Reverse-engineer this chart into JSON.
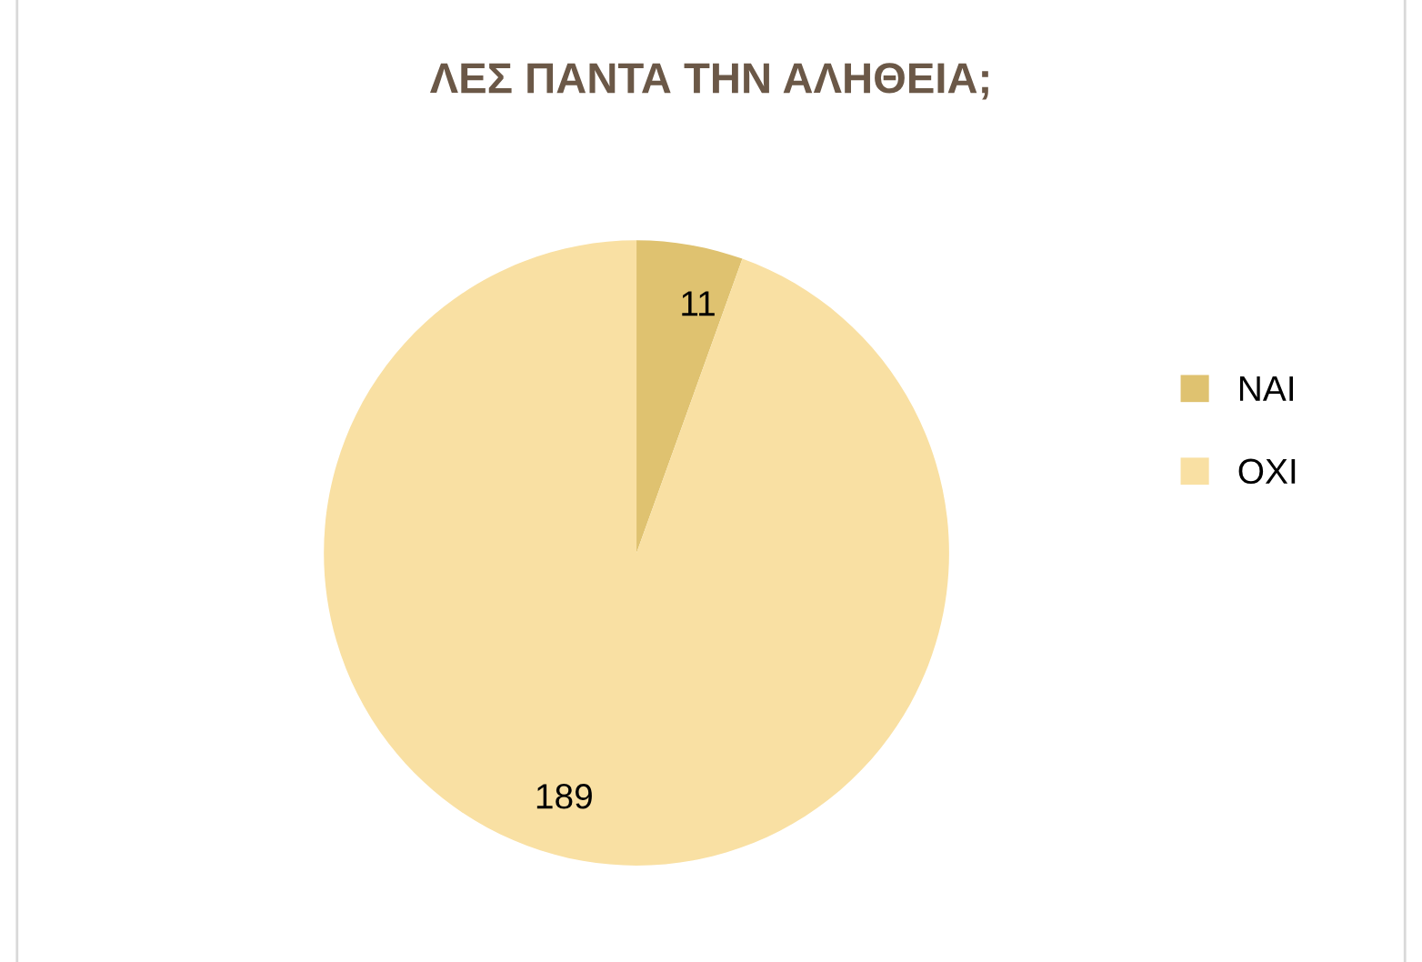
{
  "chart_data": {
    "type": "pie",
    "title": "ΛΕΣ ΠΑΝΤΑ ΤΗΝ ΑΛΗΘΕΙΑ;",
    "categories": [
      "ΝΑΙ",
      "ΟΧΙ"
    ],
    "values": [
      11,
      189
    ],
    "colors": [
      "#dfc270",
      "#f9e0a3"
    ],
    "data_labels": true,
    "legend": "right"
  }
}
